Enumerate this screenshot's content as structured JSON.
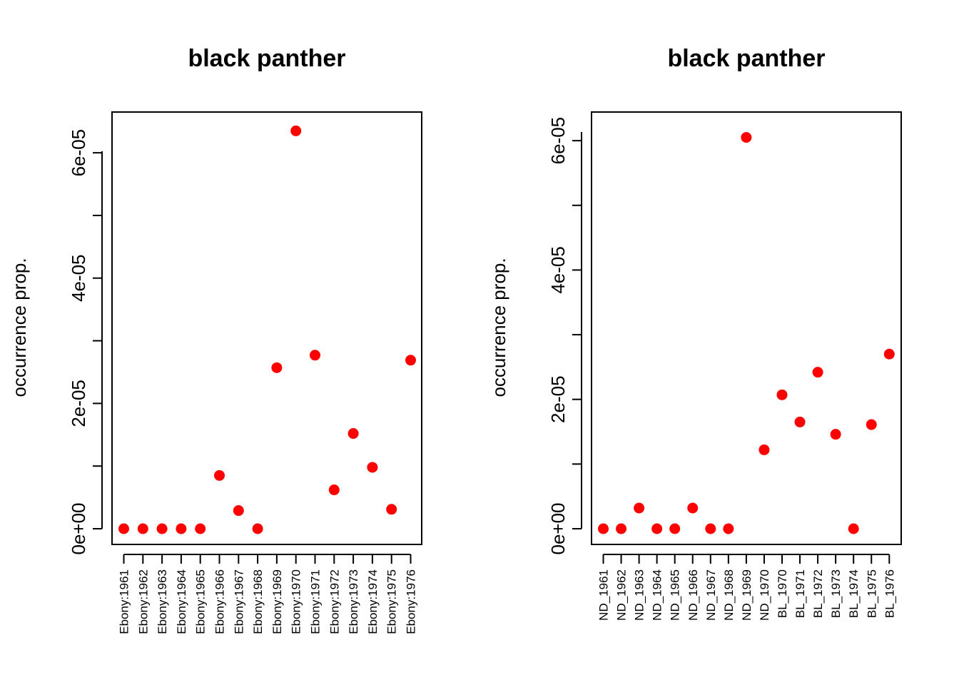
{
  "chart_data": [
    {
      "type": "scatter",
      "title": "black panther",
      "ylabel": "occurrence prop.",
      "xlabel": "",
      "ylim": [
        0,
        6.4e-05
      ],
      "y_ticks": [
        0,
        1e-05,
        2e-05,
        3e-05,
        4e-05,
        5e-05,
        6e-05
      ],
      "y_tick_labels": [
        "0e+00",
        "",
        "2e-05",
        "",
        "4e-05",
        "",
        "6e-05"
      ],
      "color": "#ff0000",
      "categories": [
        "Ebony:1961",
        "Ebony:1962",
        "Ebony:1963",
        "Ebony:1964",
        "Ebony:1965",
        "Ebony:1966",
        "Ebony:1967",
        "Ebony:1968",
        "Ebony:1969",
        "Ebony:1970",
        "Ebony:1971",
        "Ebony:1972",
        "Ebony:1973",
        "Ebony:1974",
        "Ebony:1975",
        "Ebony:1976"
      ],
      "values": [
        0,
        0,
        0,
        0,
        0,
        8.5e-06,
        2.9e-06,
        0,
        2.57e-05,
        6.35e-05,
        2.77e-05,
        6.2e-06,
        1.52e-05,
        9.8e-06,
        3.1e-06,
        2.69e-05
      ]
    },
    {
      "type": "scatter",
      "title": "black panther",
      "ylabel": "occurrence prop.",
      "xlabel": "",
      "ylim": [
        0,
        6.2e-05
      ],
      "y_ticks": [
        0,
        1e-05,
        2e-05,
        3e-05,
        4e-05,
        5e-05,
        6e-05
      ],
      "y_tick_labels": [
        "0e+00",
        "",
        "2e-05",
        "",
        "4e-05",
        "",
        "6e-05"
      ],
      "color": "#ff0000",
      "categories": [
        "ND_1961",
        "ND_1962",
        "ND_1963",
        "ND_1964",
        "ND_1965",
        "ND_1966",
        "ND_1967",
        "ND_1968",
        "ND_1969",
        "ND_1970",
        "BL_1970",
        "BL_1971",
        "BL_1972",
        "BL_1973",
        "BL_1974",
        "BL_1975",
        "BL_1976"
      ],
      "values": [
        0,
        0,
        3.2e-06,
        0,
        0,
        3.2e-06,
        0,
        0,
        6.05e-05,
        1.22e-05,
        2.07e-05,
        1.65e-05,
        2.42e-05,
        1.46e-05,
        0,
        1.61e-05,
        2.7e-05
      ]
    }
  ]
}
